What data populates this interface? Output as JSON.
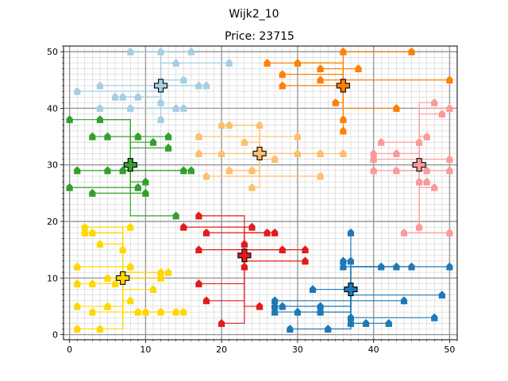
{
  "page_title": "Wijk2_10",
  "chart_data": {
    "type": "scatter",
    "title": "Price: 23715",
    "xlabel": "",
    "ylabel": "",
    "xlim": [
      -0.8,
      51.0
    ],
    "ylim": [
      -0.9,
      51.0
    ],
    "xticks": [
      "0",
      "10",
      "20",
      "30",
      "40",
      "50"
    ],
    "yticks": [
      "0",
      "10",
      "20",
      "30",
      "40",
      "50"
    ],
    "grid": "major and minor",
    "clusters": [
      {
        "color": "#a6cee3",
        "center": [
          12,
          44
        ],
        "houses": [
          [
            1,
            43
          ],
          [
            4,
            44
          ],
          [
            4,
            40
          ],
          [
            6,
            42
          ],
          [
            7,
            42
          ],
          [
            8,
            50
          ],
          [
            8,
            40
          ],
          [
            9,
            42
          ],
          [
            12,
            50
          ],
          [
            12,
            41
          ],
          [
            12,
            38
          ],
          [
            14,
            48
          ],
          [
            14,
            40
          ],
          [
            15,
            45
          ],
          [
            15,
            40
          ],
          [
            16,
            50
          ],
          [
            17,
            44
          ],
          [
            18,
            44
          ],
          [
            21,
            48
          ]
        ]
      },
      {
        "color": "#ff7f00",
        "center": [
          36,
          44
        ],
        "houses": [
          [
            26,
            48
          ],
          [
            28,
            46
          ],
          [
            28,
            44
          ],
          [
            30,
            48
          ],
          [
            33,
            47
          ],
          [
            33,
            45
          ],
          [
            35,
            41
          ],
          [
            36,
            50
          ],
          [
            36,
            38
          ],
          [
            36,
            36
          ],
          [
            38,
            47
          ],
          [
            43,
            40
          ],
          [
            45,
            50
          ],
          [
            50,
            45
          ]
        ]
      },
      {
        "color": "#33a02c",
        "center": [
          8,
          30
        ],
        "houses": [
          [
            0,
            38
          ],
          [
            0,
            26
          ],
          [
            1,
            29
          ],
          [
            3,
            35
          ],
          [
            3,
            25
          ],
          [
            4,
            38
          ],
          [
            5,
            29
          ],
          [
            5,
            35
          ],
          [
            7,
            29
          ],
          [
            9,
            35
          ],
          [
            9,
            26
          ],
          [
            10,
            27
          ],
          [
            10,
            25
          ],
          [
            11,
            34
          ],
          [
            13,
            33
          ],
          [
            13,
            35
          ],
          [
            14,
            21
          ],
          [
            15,
            29
          ],
          [
            16,
            29
          ]
        ]
      },
      {
        "color": "#fdbf6f",
        "center": [
          25,
          32
        ],
        "houses": [
          [
            17,
            35
          ],
          [
            17,
            32
          ],
          [
            18,
            28
          ],
          [
            20,
            37
          ],
          [
            20,
            32
          ],
          [
            21,
            37
          ],
          [
            21,
            29
          ],
          [
            23,
            34
          ],
          [
            24,
            29
          ],
          [
            24,
            26
          ],
          [
            25,
            37
          ],
          [
            27,
            31
          ],
          [
            30,
            35
          ],
          [
            30,
            32
          ],
          [
            33,
            32
          ],
          [
            33,
            28
          ],
          [
            36,
            32
          ]
        ]
      },
      {
        "color": "#fb9a99",
        "center": [
          46,
          30
        ],
        "houses": [
          [
            40,
            32
          ],
          [
            40,
            31
          ],
          [
            40,
            29
          ],
          [
            41,
            34
          ],
          [
            43,
            32
          ],
          [
            43,
            29
          ],
          [
            44,
            18
          ],
          [
            46,
            34
          ],
          [
            46,
            27
          ],
          [
            46,
            19
          ],
          [
            47,
            35
          ],
          [
            47,
            29
          ],
          [
            47,
            27
          ],
          [
            48,
            26
          ],
          [
            48,
            41
          ],
          [
            49,
            39
          ],
          [
            50,
            40
          ],
          [
            50,
            31
          ],
          [
            50,
            29
          ],
          [
            50,
            18
          ]
        ]
      },
      {
        "color": "#ffd700",
        "center": [
          7,
          10
        ],
        "houses": [
          [
            1,
            12
          ],
          [
            1,
            9
          ],
          [
            1,
            5
          ],
          [
            1,
            1
          ],
          [
            2,
            19
          ],
          [
            2,
            18
          ],
          [
            3,
            18
          ],
          [
            3,
            9
          ],
          [
            3,
            4
          ],
          [
            4,
            16
          ],
          [
            4,
            1
          ],
          [
            5,
            10
          ],
          [
            5,
            5
          ],
          [
            6,
            9
          ],
          [
            7,
            15
          ],
          [
            8,
            19
          ],
          [
            8,
            12
          ],
          [
            8,
            6
          ],
          [
            9,
            4
          ],
          [
            10,
            4
          ],
          [
            11,
            8
          ],
          [
            12,
            11
          ],
          [
            12,
            10
          ],
          [
            12,
            4
          ],
          [
            13,
            11
          ],
          [
            14,
            4
          ],
          [
            15,
            4
          ]
        ]
      },
      {
        "color": "#e31a1c",
        "center": [
          23,
          14
        ],
        "houses": [
          [
            15,
            19
          ],
          [
            17,
            21
          ],
          [
            17,
            15
          ],
          [
            17,
            9
          ],
          [
            18,
            18
          ],
          [
            18,
            6
          ],
          [
            20,
            2
          ],
          [
            23,
            16
          ],
          [
            23,
            12
          ],
          [
            24,
            19
          ],
          [
            25,
            5
          ],
          [
            26,
            18
          ],
          [
            27,
            18
          ],
          [
            28,
            15
          ],
          [
            31,
            15
          ],
          [
            31,
            13
          ]
        ]
      },
      {
        "color": "#1f78b4",
        "center": [
          37,
          8
        ],
        "houses": [
          [
            27,
            6
          ],
          [
            27,
            5
          ],
          [
            27,
            4
          ],
          [
            28,
            5
          ],
          [
            29,
            1
          ],
          [
            30,
            4
          ],
          [
            32,
            8
          ],
          [
            33,
            4
          ],
          [
            33,
            5
          ],
          [
            34,
            1
          ],
          [
            36,
            12
          ],
          [
            36,
            13
          ],
          [
            37,
            18
          ],
          [
            37,
            13
          ],
          [
            37,
            3
          ],
          [
            37,
            2
          ],
          [
            39,
            2
          ],
          [
            41,
            12
          ],
          [
            42,
            2
          ],
          [
            43,
            12
          ],
          [
            44,
            6
          ],
          [
            45,
            12
          ],
          [
            48,
            3
          ],
          [
            49,
            7
          ],
          [
            50,
            12
          ]
        ]
      }
    ]
  }
}
